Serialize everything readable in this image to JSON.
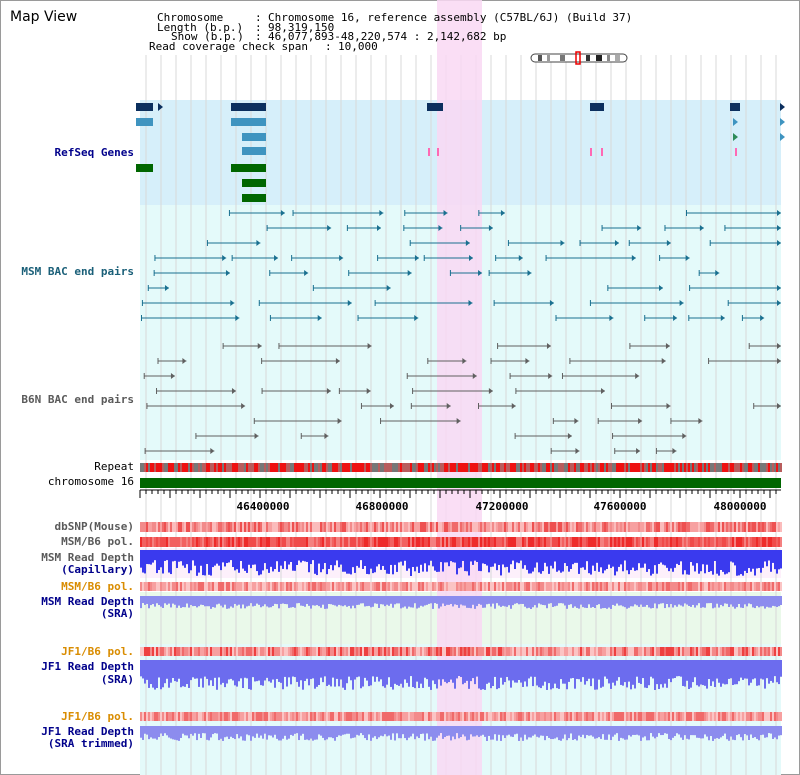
{
  "view_title": "Map View",
  "info": {
    "chromosome_label": "Chromosome",
    "chromosome_value": "Chromosome 16, reference assembly (C57BL/6J) (Build 37)",
    "length_label": "Length (b.p.)",
    "length_value": "98,319,150",
    "show_label": "Show (b.p.)",
    "show_value": "46,077,893-48,220,574 : 2,142,682 bp",
    "coverage_label": "Read coverage check span",
    "coverage_value": "10,000"
  },
  "tracks": {
    "refseq": "RefSeq Genes",
    "msm_bac": "MSM BAC end pairs",
    "b6n_bac": "B6N BAC end pairs",
    "repeat": "Repeat",
    "chromosome": "chromosome 16",
    "dbsnp": "dbSNP(Mouse)",
    "msm_b6_pol_1": "MSM/B6 pol.",
    "msm_depth_cap_1": "MSM Read Depth",
    "msm_depth_cap_2": "(Capillary)",
    "msm_b6_pol_2": "MSM/B6 pol.",
    "msm_depth_sra_1": "MSM Read Depth",
    "msm_depth_sra_2": "(SRA)",
    "jf1_b6_pol_1": "JF1/B6 pol.",
    "jf1_depth_sra_1": "JF1 Read Depth",
    "jf1_depth_sra_2": "(SRA)",
    "jf1_b6_pol_2": "JF1/B6 pol.",
    "jf1_depth_trim_1": "JF1 Read Depth",
    "jf1_depth_trim_2": "(SRA trimmed)"
  },
  "coordinates": [
    "46400000",
    "46800000",
    "47200000",
    "47600000",
    "48000000"
  ],
  "colors": {
    "refseq_bg": "#d6effa",
    "bac_bg": "#e4fafa",
    "highlight": "#f9d8f3",
    "gene_dark": "#0b2f5e",
    "gene_mid": "#3f94c0",
    "gene_green": "#006600",
    "msm_bac": "#1a7090",
    "b6n_bac": "#606060",
    "chromosome_bar": "#006600",
    "label_blue": "#00008b",
    "label_orange": "#d98c00",
    "label_teal": "#1a5f78",
    "label_gray": "#5a5a5a"
  }
}
